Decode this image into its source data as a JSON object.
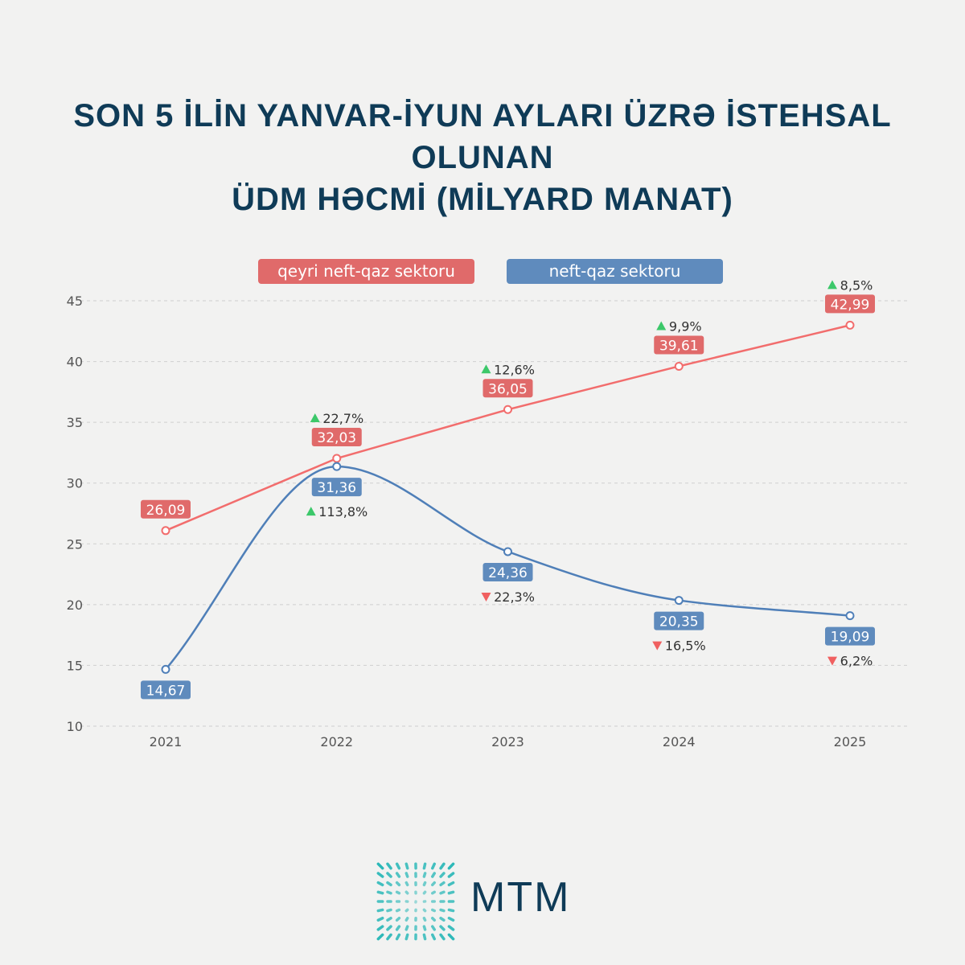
{
  "title_line1": "SON 5 İLİN YANVAR-İYUN AYLARI ÜZRƏ İSTEHSAL OLUNAN",
  "title_line2": "ÜDM HƏCMİ (MİLYARD MANAT)",
  "logo_text": "MTM",
  "colors": {
    "red": "#e06a6a",
    "blue": "#5f8bbd",
    "up": "#3cc86a",
    "down": "#f06060",
    "title": "#0f3b57"
  },
  "chart_data": {
    "type": "line",
    "title": "SON 5 İLİN YANVAR-İYUN AYLARI ÜZRƏ İSTEHSAL OLUNAN ÜDM HƏCMİ (MİLYARD MANAT)",
    "categories": [
      "2021",
      "2022",
      "2023",
      "2024",
      "2025"
    ],
    "ylim": [
      10,
      45
    ],
    "yticks": [
      "10",
      "15",
      "20",
      "25",
      "30",
      "35",
      "40",
      "45"
    ],
    "grid": true,
    "legend": "top-center",
    "series": [
      {
        "name": "qeyri neft-qaz sektoru",
        "values": [
          26.09,
          32.03,
          36.05,
          39.61,
          42.99
        ],
        "labels": [
          "26,09",
          "32,03",
          "36,05",
          "39,61",
          "42,99"
        ],
        "changes": [
          null,
          "22,7%",
          "12,6%",
          "9,9%",
          "8,5%"
        ],
        "directions": [
          null,
          "up",
          "up",
          "up",
          "up"
        ]
      },
      {
        "name": "neft-qaz sektoru",
        "values": [
          14.67,
          31.36,
          24.36,
          20.35,
          19.09
        ],
        "labels": [
          "14,67",
          "31,36",
          "24,36",
          "20,35",
          "19,09"
        ],
        "changes": [
          null,
          "113,8%",
          "22,3%",
          "16,5%",
          "6,2%"
        ],
        "directions": [
          null,
          "up",
          "down",
          "down",
          "down"
        ]
      }
    ]
  }
}
